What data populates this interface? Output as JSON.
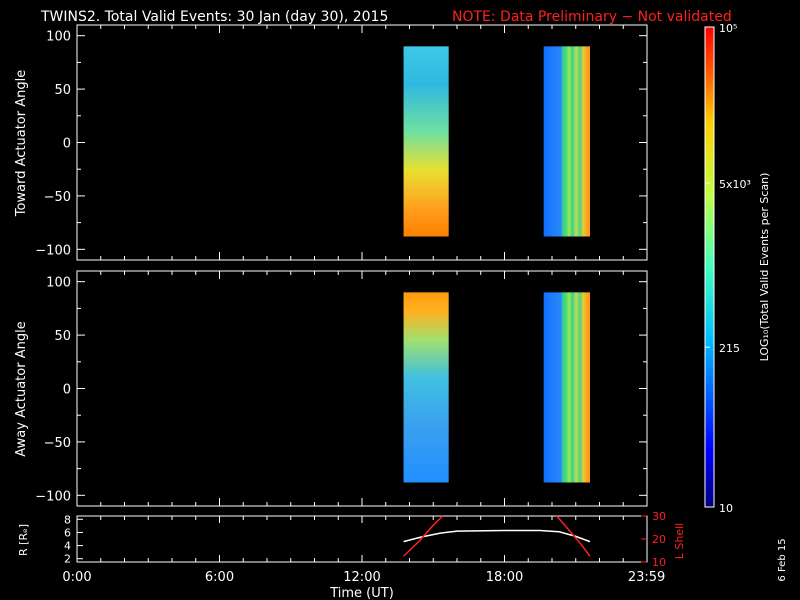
{
  "title": "TWINS2. Total Valid Events: 30 Jan (day  30), 2015",
  "note": "NOTE: Data Preliminary − Not validated",
  "date_stamp": "6 Feb 15",
  "colors": {
    "note": "#ff2020",
    "background": "#000000",
    "axes": "#ffffff",
    "r_line": "#ffffff",
    "lshell_line": "#ff2020"
  },
  "chart_data": [
    {
      "type": "heatmap",
      "ylabel": "Toward Actuator Angle",
      "ylim": [
        -110,
        110
      ],
      "yticks": [
        "100",
        "50",
        "0",
        "−50",
        "−100"
      ],
      "xlim": [
        0,
        24
      ],
      "scan_blocks": [
        {
          "start_hr": 13.75,
          "end_hr": 15.65,
          "angle_range": [
            -88,
            90
          ],
          "profile": "rising_toward"
        },
        {
          "start_hr": 19.65,
          "end_hr": 21.6,
          "angle_range": [
            -88,
            90
          ],
          "profile": "striped"
        }
      ]
    },
    {
      "type": "heatmap",
      "ylabel": "Away Actuator Angle",
      "ylim": [
        -110,
        110
      ],
      "yticks": [
        "100",
        "50",
        "0",
        "−50",
        "−100"
      ],
      "xlim": [
        0,
        24
      ],
      "scan_blocks": [
        {
          "start_hr": 13.75,
          "end_hr": 15.65,
          "angle_range": [
            -88,
            90
          ],
          "profile": "rising_away"
        },
        {
          "start_hr": 19.65,
          "end_hr": 21.6,
          "angle_range": [
            -88,
            90
          ],
          "profile": "striped"
        }
      ]
    },
    {
      "type": "line",
      "ylabel": "R [Rₑ]",
      "yticks_left": [
        "8",
        "6",
        "4",
        "2"
      ],
      "ylim_left": [
        1.5,
        8.5
      ],
      "y2label": "L Shell",
      "yticks_right": [
        "30",
        "20",
        "10"
      ],
      "ylim_right": [
        10,
        30
      ],
      "series": [
        {
          "axis": "left",
          "color": "#ffffff",
          "x": [
            13.75,
            14.5,
            15.3,
            16,
            18,
            19.5,
            20.3,
            21,
            21.6
          ],
          "y": [
            4.6,
            5.3,
            5.9,
            6.2,
            6.3,
            6.3,
            6.1,
            5.4,
            4.6
          ]
        },
        {
          "axis": "right",
          "color": "#ff2020",
          "x": [
            13.75,
            14.4,
            15,
            15.4
          ],
          "y": [
            12.5,
            19,
            26,
            30
          ]
        },
        {
          "axis": "right",
          "color": "#ff2020",
          "x": [
            20.2,
            20.7,
            21.2,
            21.6
          ],
          "y": [
            30,
            24,
            18,
            12.5
          ]
        }
      ]
    }
  ],
  "xaxis": {
    "label": "Time (UT)",
    "ticks": [
      "0:00",
      "6:00",
      "12:00",
      "18:00",
      "23:59"
    ],
    "tick_hours": [
      0,
      6,
      12,
      18,
      23.983
    ]
  },
  "colorbar": {
    "label": "LOG₁₀(Total Valid Events per Scan)",
    "tick_labels": [
      "10⁵",
      "5x10³",
      "215",
      "10"
    ],
    "tick_values_log": [
      5,
      3.699,
      2.332,
      1
    ],
    "range_log": [
      1,
      5
    ],
    "colormap": "jet"
  }
}
